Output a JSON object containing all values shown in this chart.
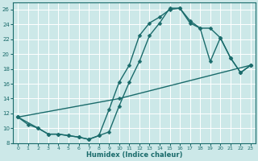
{
  "xlabel": "Humidex (Indice chaleur)",
  "bg_color": "#cce8e8",
  "grid_color": "#ffffff",
  "line_color": "#1a6b6b",
  "xlim": [
    -0.5,
    23.5
  ],
  "ylim": [
    8,
    27
  ],
  "xticks": [
    0,
    1,
    2,
    3,
    4,
    5,
    6,
    7,
    8,
    9,
    10,
    11,
    12,
    13,
    14,
    15,
    16,
    17,
    18,
    19,
    20,
    21,
    22,
    23
  ],
  "yticks": [
    8,
    10,
    12,
    14,
    16,
    18,
    20,
    22,
    24,
    26
  ],
  "line1_x": [
    0,
    1,
    2,
    3,
    4,
    5,
    6,
    7,
    8,
    9,
    10,
    11,
    12,
    13,
    14,
    15,
    16,
    17,
    18,
    19,
    20,
    21,
    22,
    23
  ],
  "line1_y": [
    11.5,
    10.5,
    10.0,
    9.2,
    9.2,
    9.0,
    8.8,
    8.5,
    9.0,
    9.5,
    13.0,
    16.2,
    19.0,
    22.5,
    24.2,
    26.2,
    26.2,
    24.5,
    23.5,
    23.5,
    22.2,
    19.5,
    17.5,
    18.5
  ],
  "line2_x": [
    0,
    2,
    3,
    4,
    5,
    6,
    7,
    8,
    9,
    10,
    11,
    12,
    13,
    14,
    15,
    16,
    17,
    18,
    19,
    20,
    21,
    22,
    23
  ],
  "line2_y": [
    11.5,
    10.0,
    9.2,
    9.2,
    9.0,
    8.8,
    8.5,
    9.0,
    12.5,
    16.2,
    18.5,
    22.5,
    24.2,
    25.0,
    26.0,
    26.2,
    24.2,
    23.5,
    19.0,
    22.2,
    19.5,
    17.5,
    18.5
  ],
  "line3_x": [
    0,
    10,
    23
  ],
  "line3_y": [
    11.5,
    14.0,
    18.5
  ],
  "marker_size": 2.5,
  "linewidth": 1.0
}
